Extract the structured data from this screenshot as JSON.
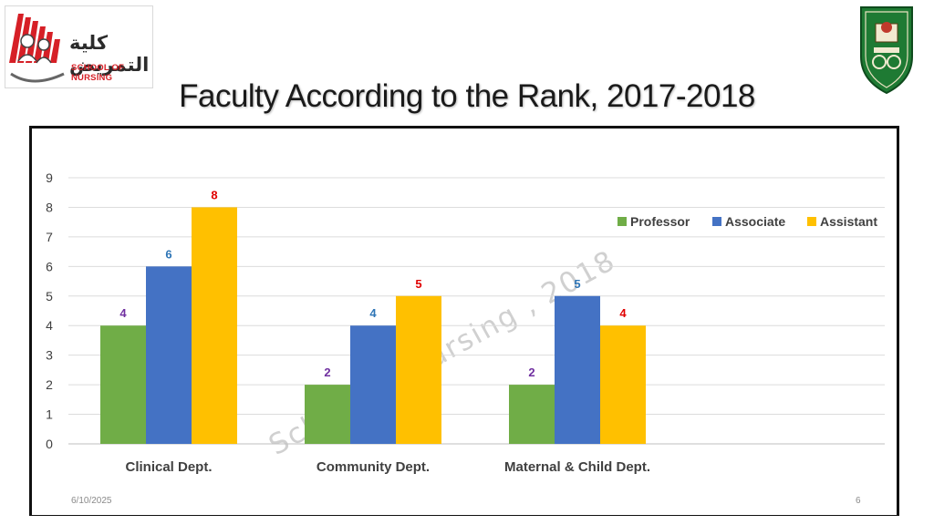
{
  "header": {
    "title": "Faculty According to the Rank, 2017-2018",
    "logo_arabic": "كلية التمريض",
    "logo_english": "SCHOOL OF NURSING"
  },
  "watermark": "School of Nursing , 2018",
  "footer": {
    "date": "6/10/2025",
    "page": "6"
  },
  "colors": {
    "professor": "#70ad47",
    "associate": "#4472c4",
    "assistant": "#ffc000",
    "label_professor": "#7030a0",
    "label_associate": "#2e75b6",
    "label_assistant": "#e00000"
  },
  "chart_data": {
    "type": "bar",
    "categories": [
      "Clinical Dept.",
      "Community Dept.",
      "Maternal & Child Dept."
    ],
    "series": [
      {
        "name": "Professor",
        "values": [
          4,
          2,
          2
        ]
      },
      {
        "name": "Associate",
        "values": [
          6,
          4,
          5
        ]
      },
      {
        "name": "Assistant",
        "values": [
          8,
          5,
          4
        ]
      }
    ],
    "title": "",
    "xlabel": "",
    "ylabel": "",
    "ylim": [
      0,
      9
    ],
    "yticks": [
      0,
      1,
      2,
      3,
      4,
      5,
      6,
      7,
      8,
      9
    ],
    "grid": true,
    "legend": "top-right",
    "data_labels": true
  }
}
